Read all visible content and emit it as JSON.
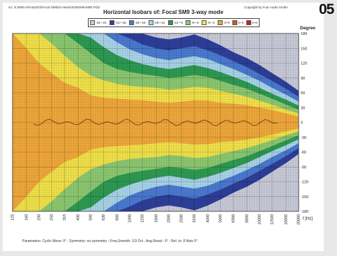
{
  "header": {
    "src_path": "src: E:0808-Afrma\\DOS\\Focal SM9\\ZA-Mess\\SONSM9-M0R.POZ",
    "copyright": "Copyright by Four Audio GmbH",
    "badge": "05"
  },
  "params_text": "Parameters:  Cyclic Move:  0°  ;  Symmetry: no symmetry  ;  Freq.Smooth: 1/3 Oct  ;  Ang.Resol.:  5°  ;  Rel. to: 0°Axis   0°",
  "colors": {
    "c1": "#c8cad8",
    "c2": "#2e3f9a",
    "c3": "#4a7ad0",
    "c4": "#a8d4e8",
    "c5": "#2e9a52",
    "c6": "#8cc870",
    "c7": "#f2e24a",
    "c8": "#f0a83a",
    "c9": "#d2571a",
    "c10": "#cc2020"
  },
  "chart_data": {
    "type": "heatmap",
    "title": "Horizontal Isobars of:  Focal  SM9  3-way mode",
    "xlabel": "f [Hz]",
    "ylabel": "Degree",
    "x_scale": "log",
    "x_ticks": [
      "125",
      "160",
      "200",
      "250",
      "315",
      "400",
      "500",
      "630",
      "800",
      "1000",
      "1250",
      "1600",
      "2000",
      "2500",
      "3150",
      "4000",
      "5000",
      "6300",
      "8000",
      "10000",
      "12500",
      "16000",
      "20000"
    ],
    "y_ticks": [
      "180",
      "150",
      "120",
      "90",
      "60",
      "30",
      "0",
      "-30",
      "-60",
      "-90",
      "-120",
      "-150",
      "-180"
    ],
    "ylim": [
      -180,
      180
    ],
    "xlim": [
      125,
      20000
    ],
    "grid": true,
    "legend_position": "top",
    "legend": [
      "-24~-21",
      "-21~-18",
      "-18~-15",
      "-15~-12",
      "-12~-9",
      "-9~-6",
      "-6~-3",
      "-3~0",
      "0~3",
      "3~6"
    ],
    "bands": [
      {
        "legend": "-24~-21",
        "color": "#c8cad8"
      },
      {
        "legend": "-21~-18",
        "color": "#2e3f9a"
      },
      {
        "legend": "-18~-15",
        "color": "#4a7ad0"
      },
      {
        "legend": "-15~-12",
        "color": "#a8d4e8"
      },
      {
        "legend": "-12~-9",
        "color": "#2e9a52"
      },
      {
        "legend": "-9~-6",
        "color": "#8cc870"
      },
      {
        "legend": "-6~-3",
        "color": "#f2e24a"
      },
      {
        "legend": "-3~0",
        "color": "#f0a83a"
      },
      {
        "legend": "0~3",
        "color": "#d2571a"
      },
      {
        "legend": "3~6",
        "color": "#cc2020"
      }
    ],
    "contours_half_angle_deg": {
      "freq_hz": [
        125,
        160,
        200,
        250,
        315,
        400,
        500,
        630,
        800,
        1000,
        1250,
        1600,
        2000,
        2500,
        3150,
        4000,
        5000,
        6300,
        8000,
        10000,
        12500,
        16000,
        20000
      ],
      "-3dB": [
        180,
        150,
        120,
        100,
        80,
        70,
        55,
        50,
        48,
        46,
        45,
        42,
        40,
        42,
        45,
        44,
        40,
        38,
        35,
        30,
        25,
        18,
        12
      ],
      "-6dB": [
        180,
        180,
        180,
        160,
        135,
        112,
        95,
        85,
        78,
        74,
        72,
        70,
        66,
        68,
        72,
        70,
        64,
        58,
        52,
        44,
        36,
        26,
        18
      ],
      "-9dB": [
        180,
        180,
        180,
        180,
        180,
        160,
        140,
        120,
        108,
        102,
        98,
        94,
        90,
        92,
        96,
        92,
        84,
        76,
        68,
        58,
        48,
        36,
        26
      ],
      "-12dB": [
        180,
        180,
        180,
        180,
        180,
        180,
        172,
        152,
        136,
        126,
        118,
        112,
        108,
        112,
        116,
        110,
        102,
        92,
        82,
        70,
        58,
        46,
        34
      ],
      "-15dB": [
        180,
        180,
        180,
        180,
        180,
        180,
        180,
        180,
        162,
        148,
        138,
        130,
        126,
        130,
        134,
        128,
        118,
        108,
        96,
        84,
        70,
        56,
        42
      ],
      "-18dB": [
        180,
        180,
        180,
        180,
        180,
        180,
        180,
        180,
        180,
        170,
        158,
        150,
        146,
        150,
        154,
        146,
        136,
        124,
        112,
        98,
        84,
        68,
        52
      ],
      "-21dB": [
        180,
        180,
        180,
        180,
        180,
        180,
        180,
        180,
        180,
        180,
        180,
        172,
        168,
        172,
        178,
        168,
        156,
        142,
        130,
        116,
        100,
        82,
        64
      ]
    }
  }
}
